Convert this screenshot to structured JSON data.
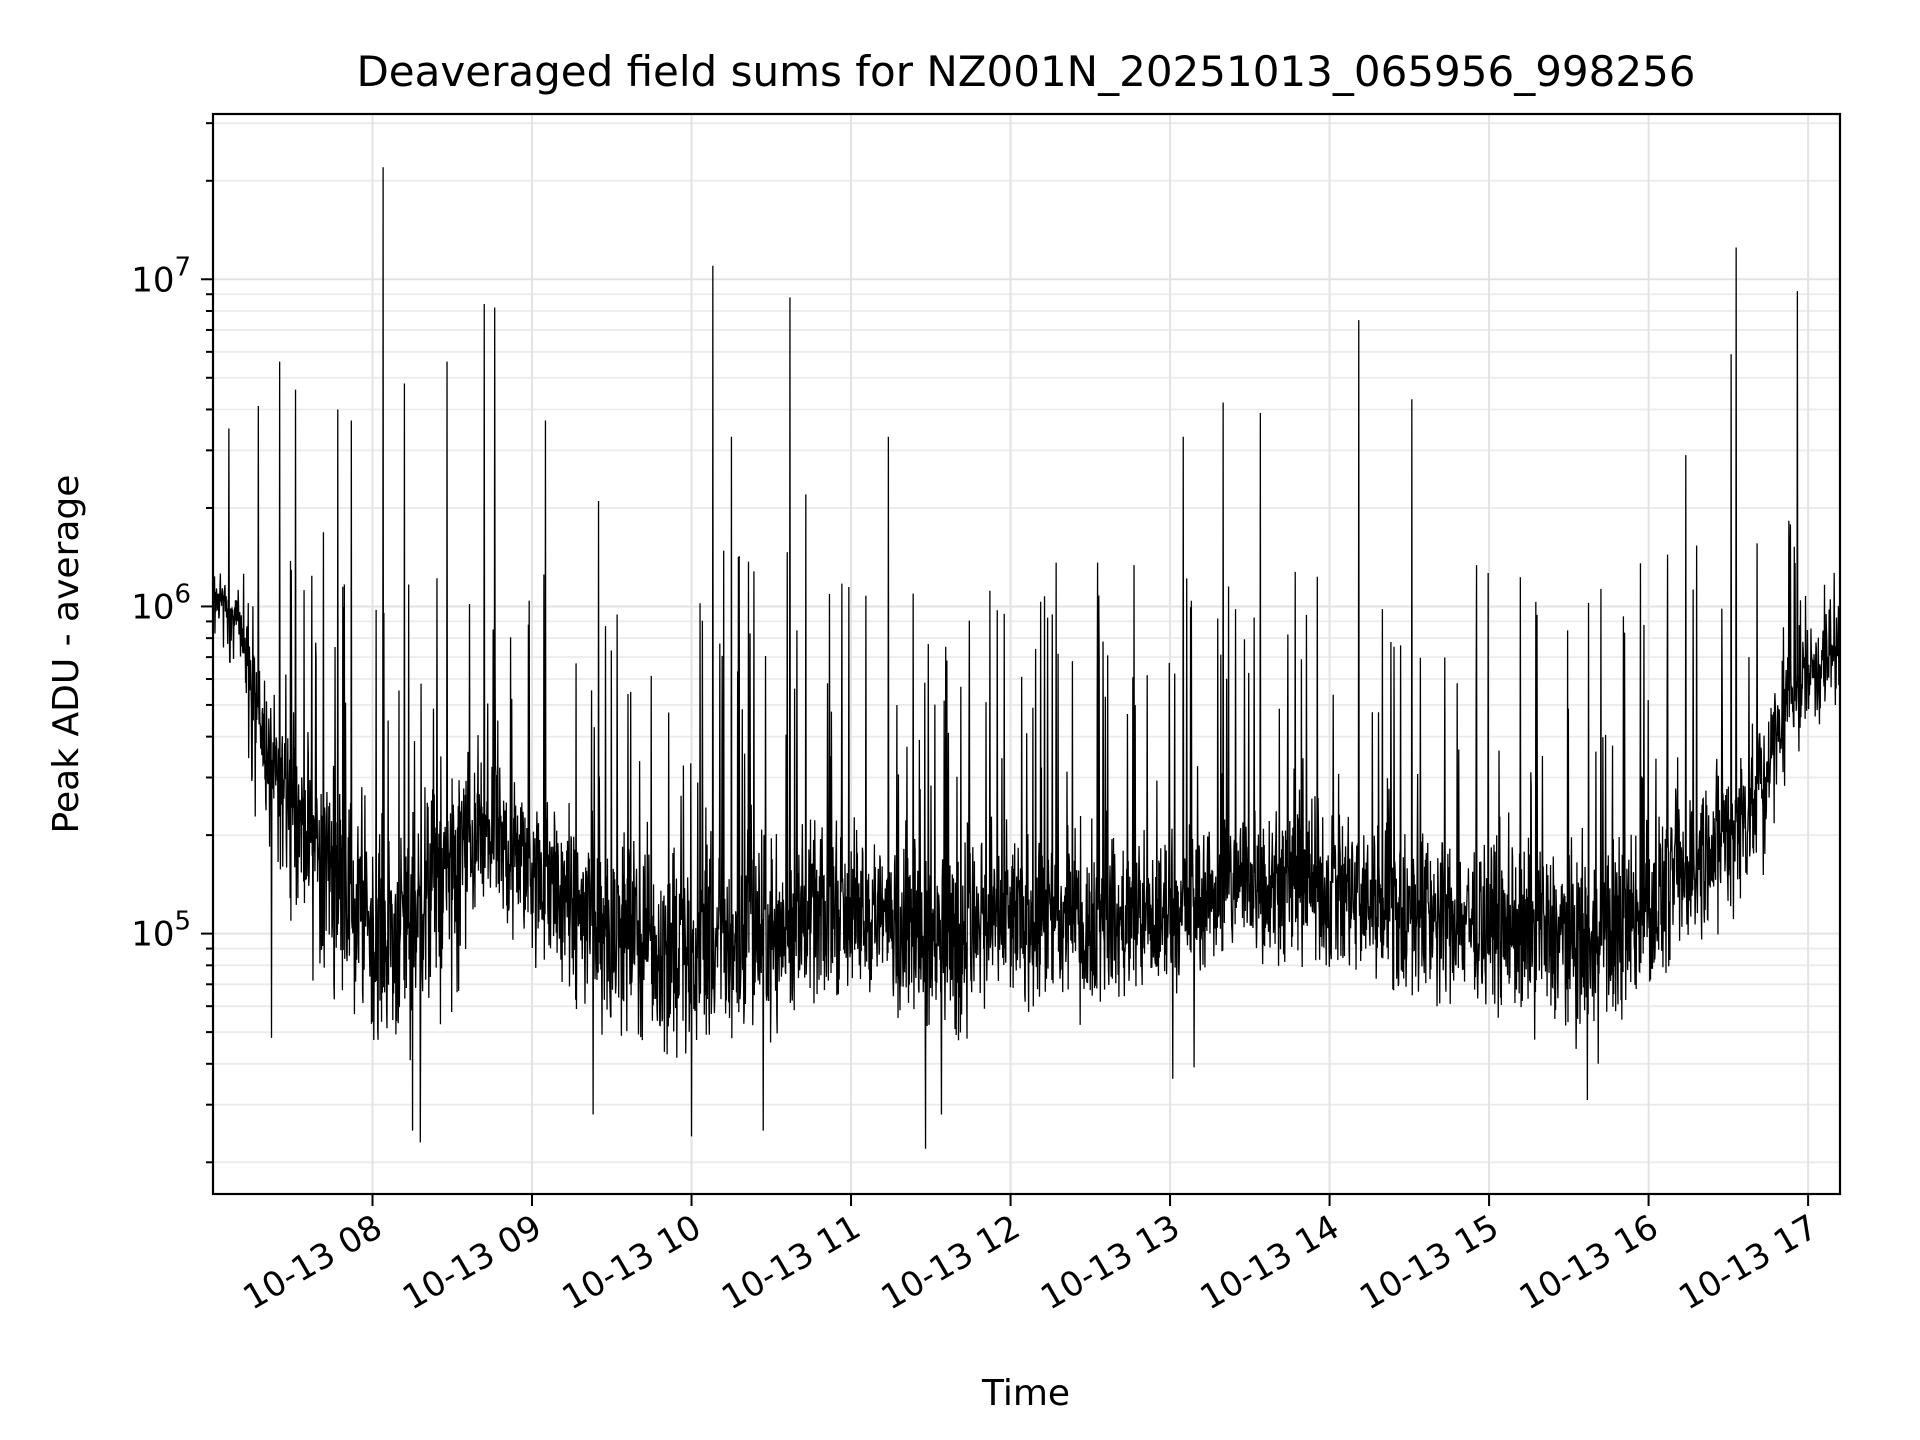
{
  "chart_data": {
    "type": "line",
    "title": "Deaveraged field sums for NZ001N_20251013_065956_998256",
    "xlabel": "Time",
    "ylabel": "Peak ADU - average",
    "yscale": "log",
    "ylim": [
      16000,
      32000000
    ],
    "xlim": [
      "2025-10-13 07:00:00",
      "2025-10-13 17:12:00"
    ],
    "grid": true,
    "legend": "none",
    "line_color": "#000000",
    "x_ticks": [
      {
        "value": "2025-10-13 08:00",
        "label": "10-13 08"
      },
      {
        "value": "2025-10-13 09:00",
        "label": "10-13 09"
      },
      {
        "value": "2025-10-13 10:00",
        "label": "10-13 10"
      },
      {
        "value": "2025-10-13 11:00",
        "label": "10-13 11"
      },
      {
        "value": "2025-10-13 12:00",
        "label": "10-13 12"
      },
      {
        "value": "2025-10-13 13:00",
        "label": "10-13 13"
      },
      {
        "value": "2025-10-13 14:00",
        "label": "10-13 14"
      },
      {
        "value": "2025-10-13 15:00",
        "label": "10-13 15"
      },
      {
        "value": "2025-10-13 16:00",
        "label": "10-13 16"
      },
      {
        "value": "2025-10-13 17:00",
        "label": "10-13 17"
      }
    ],
    "y_ticks": [
      {
        "value": 100000,
        "base": "10",
        "exp": "5"
      },
      {
        "value": 1000000,
        "base": "10",
        "exp": "6"
      },
      {
        "value": 10000000,
        "base": "10",
        "exp": "7"
      }
    ],
    "series": [
      {
        "envelope": {
          "description_units": "time, lower-bound ADU, typical ADU, upper-bound ADU",
          "points": [
            [
              "2025-10-13 07:00",
              750000,
              1100000,
              1500000
            ],
            [
              "2025-10-13 07:05",
              700000,
              1000000,
              1400000
            ],
            [
              "2025-10-13 07:10",
              550000,
              850000,
              1250000
            ],
            [
              "2025-10-13 07:15",
              250000,
              600000,
              1200000
            ],
            [
              "2025-10-13 07:20",
              130000,
              350000,
              1200000
            ],
            [
              "2025-10-13 07:30",
              90000,
              250000,
              1500000
            ],
            [
              "2025-10-13 07:40",
              65000,
              180000,
              1800000
            ],
            [
              "2025-10-13 08:00",
              45000,
              110000,
              1800000
            ],
            [
              "2025-10-13 08:10",
              40000,
              100000,
              1600000
            ],
            [
              "2025-10-13 08:20",
              35000,
              140000,
              1200000
            ],
            [
              "2025-10-13 08:35",
              70000,
              200000,
              1200000
            ],
            [
              "2025-10-13 08:50",
              80000,
              180000,
              1300000
            ],
            [
              "2025-10-13 09:10",
              70000,
              140000,
              1300000
            ],
            [
              "2025-10-13 09:25",
              45000,
              110000,
              1100000
            ],
            [
              "2025-10-13 09:40",
              45000,
              100000,
              1200000
            ],
            [
              "2025-10-13 10:00",
              38000,
              90000,
              1300000
            ],
            [
              "2025-10-13 10:20",
              42000,
              95000,
              1300000
            ],
            [
              "2025-10-13 10:40",
              55000,
              110000,
              1300000
            ],
            [
              "2025-10-13 11:00",
              70000,
              120000,
              1200000
            ],
            [
              "2025-10-13 11:20",
              65000,
              110000,
              1200000
            ],
            [
              "2025-10-13 11:35",
              40000,
              100000,
              1100000
            ],
            [
              "2025-10-13 12:00",
              60000,
              110000,
              1200000
            ],
            [
              "2025-10-13 12:30",
              65000,
              110000,
              1300000
            ],
            [
              "2025-10-13 12:55",
              70000,
              110000,
              1200000
            ],
            [
              "2025-10-13 13:10",
              75000,
              130000,
              1100000
            ],
            [
              "2025-10-13 13:30",
              80000,
              150000,
              1200000
            ],
            [
              "2025-10-13 14:00",
              75000,
              140000,
              1300000
            ],
            [
              "2025-10-13 14:30",
              65000,
              120000,
              1300000
            ],
            [
              "2025-10-13 15:00",
              60000,
              110000,
              1200000
            ],
            [
              "2025-10-13 15:30",
              55000,
              100000,
              1200000
            ],
            [
              "2025-10-13 15:40",
              45000,
              95000,
              1200000
            ],
            [
              "2025-10-13 16:00",
              70000,
              120000,
              1300000
            ],
            [
              "2025-10-13 16:20",
              90000,
              180000,
              1500000
            ],
            [
              "2025-10-13 16:40",
              120000,
              250000,
              1800000
            ],
            [
              "2025-10-13 16:55",
              300000,
              600000,
              2200000
            ],
            [
              "2025-10-13 17:12",
              350000,
              750000,
              2400000
            ]
          ]
        },
        "spikes": [
          [
            "2025-10-13 07:06",
            3500000
          ],
          [
            "2025-10-13 07:17",
            4100000
          ],
          [
            "2025-10-13 07:25",
            5600000
          ],
          [
            "2025-10-13 07:31",
            4600000
          ],
          [
            "2025-10-13 07:47",
            4000000
          ],
          [
            "2025-10-13 07:52",
            3700000
          ],
          [
            "2025-10-13 08:04",
            22000000
          ],
          [
            "2025-10-13 08:12",
            4800000
          ],
          [
            "2025-10-13 08:28",
            5600000
          ],
          [
            "2025-10-13 08:42",
            8400000
          ],
          [
            "2025-10-13 08:46",
            8200000
          ],
          [
            "2025-10-13 09:05",
            3700000
          ],
          [
            "2025-10-13 09:25",
            2100000
          ],
          [
            "2025-10-13 10:08",
            11000000
          ],
          [
            "2025-10-13 10:15",
            3300000
          ],
          [
            "2025-10-13 10:37",
            8800000
          ],
          [
            "2025-10-13 10:43",
            2200000
          ],
          [
            "2025-10-13 11:14",
            3300000
          ],
          [
            "2025-10-13 13:05",
            3300000
          ],
          [
            "2025-10-13 13:20",
            4200000
          ],
          [
            "2025-10-13 13:34",
            3900000
          ],
          [
            "2025-10-13 14:11",
            7500000
          ],
          [
            "2025-10-13 14:31",
            4300000
          ],
          [
            "2025-10-13 16:14",
            2900000
          ],
          [
            "2025-10-13 16:33",
            12500000
          ],
          [
            "2025-10-13 16:31",
            5900000
          ],
          [
            "2025-10-13 16:56",
            9200000
          ]
        ],
        "dips": [
          [
            "2025-10-13 07:22",
            48000
          ],
          [
            "2025-10-13 08:15",
            25000
          ],
          [
            "2025-10-13 08:18",
            23000
          ],
          [
            "2025-10-13 09:23",
            28000
          ],
          [
            "2025-10-13 10:00",
            24000
          ],
          [
            "2025-10-13 10:27",
            25000
          ],
          [
            "2025-10-13 11:28",
            22000
          ],
          [
            "2025-10-13 11:34",
            28000
          ],
          [
            "2025-10-13 13:01",
            36000
          ],
          [
            "2025-10-13 13:09",
            39000
          ],
          [
            "2025-10-13 15:37",
            31000
          ],
          [
            "2025-10-13 15:41",
            40000
          ]
        ]
      }
    ]
  }
}
